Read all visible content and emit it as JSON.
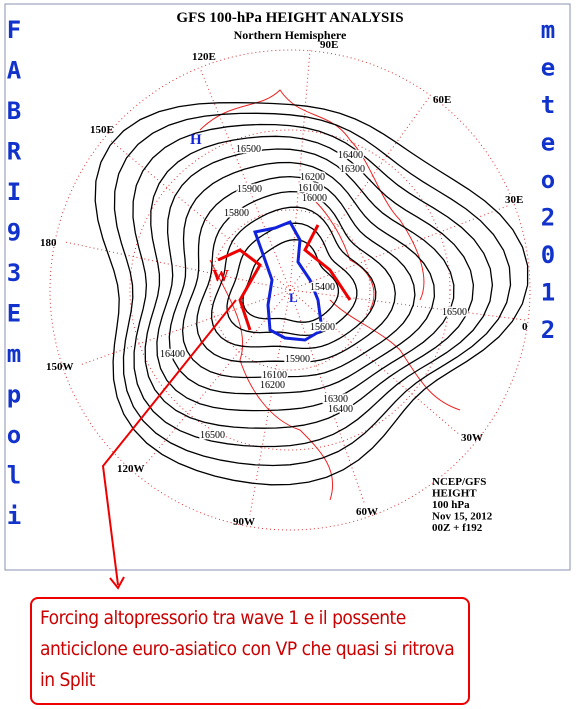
{
  "map": {
    "title": "GFS 100-hPa HEIGHT ANALYSIS",
    "subtitle": "Northern Hemisphere",
    "longitudes": [
      "90E",
      "120E",
      "60E",
      "150E",
      "30E",
      "180",
      "0",
      "150W",
      "30W",
      "120W",
      "60W",
      "90W"
    ],
    "left_letters": [
      "F",
      "A",
      "B",
      "R",
      "I",
      "9",
      "3",
      "E",
      "m",
      "p",
      "o",
      "l",
      "i"
    ],
    "right_letters": [
      "m",
      "e",
      "t",
      "e",
      "o",
      "2",
      "0",
      "1",
      "2"
    ],
    "markers": {
      "high": "H",
      "wave": "W",
      "low": "L"
    },
    "contour_labels": [
      16500,
      16400,
      16300,
      16200,
      16100,
      16000,
      15900,
      15800,
      15400,
      15600,
      16500,
      16400,
      16500,
      16300,
      16400,
      16200,
      16100,
      15900
    ],
    "info": [
      "NCEP/GFS",
      "HEIGHT",
      "100 hPa",
      "Nov 15, 2012",
      "00Z + f192"
    ],
    "annotation": "Forcing altopressorio tra wave 1 e il possente anticiclone euro-asiatico con VP che quasi si ritrova in Split"
  }
}
